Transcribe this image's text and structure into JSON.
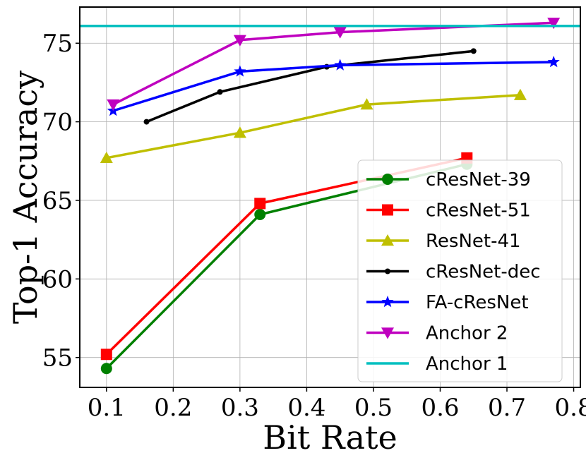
{
  "chart_data": {
    "type": "line",
    "xlabel": "Bit Rate",
    "ylabel": "Top-1 Accuracy",
    "xlim": [
      0.06,
      0.81
    ],
    "ylim": [
      53.1,
      77.3
    ],
    "xticks": [
      0.1,
      0.2,
      0.3,
      0.4,
      0.5,
      0.6,
      0.7,
      0.8
    ],
    "xtick_labels": [
      "0.1",
      "0.2",
      "0.3",
      "0.4",
      "0.5",
      "0.6",
      "0.7",
      "0.8"
    ],
    "yticks": [
      55,
      60,
      65,
      70,
      75
    ],
    "ytick_labels": [
      "55",
      "60",
      "65",
      "70",
      "75"
    ],
    "grid": true,
    "legend_position": "lower-right",
    "series": [
      {
        "name": "cResNet-39",
        "color": "#008000",
        "marker": "circle",
        "x": [
          0.1,
          0.33,
          0.64
        ],
        "y": [
          54.3,
          64.1,
          67.3
        ]
      },
      {
        "name": "cResNet-51",
        "color": "#ff0000",
        "marker": "square",
        "x": [
          0.1,
          0.33,
          0.64
        ],
        "y": [
          55.2,
          64.8,
          67.7
        ]
      },
      {
        "name": "ResNet-41",
        "color": "#bfbf00",
        "marker": "triangle-up",
        "x": [
          0.1,
          0.3,
          0.49,
          0.72
        ],
        "y": [
          67.7,
          69.3,
          71.1,
          71.7
        ]
      },
      {
        "name": "cResNet-dec",
        "color": "#000000",
        "marker": "dot",
        "x": [
          0.16,
          0.27,
          0.43,
          0.65
        ],
        "y": [
          70.0,
          71.9,
          73.5,
          74.5
        ]
      },
      {
        "name": "FA-cResNet",
        "color": "#0000ff",
        "marker": "star",
        "x": [
          0.11,
          0.3,
          0.45,
          0.77
        ],
        "y": [
          70.7,
          73.2,
          73.6,
          73.8
        ]
      },
      {
        "name": "Anchor 2",
        "color": "#bf00bf",
        "marker": "triangle-down",
        "x": [
          0.11,
          0.3,
          0.45,
          0.77
        ],
        "y": [
          71.1,
          75.2,
          75.7,
          76.3
        ]
      },
      {
        "name": "Anchor 1",
        "color": "#00bfbf",
        "marker": "hline",
        "x": [
          0.06,
          0.81
        ],
        "y": [
          76.1,
          76.1
        ]
      }
    ]
  }
}
